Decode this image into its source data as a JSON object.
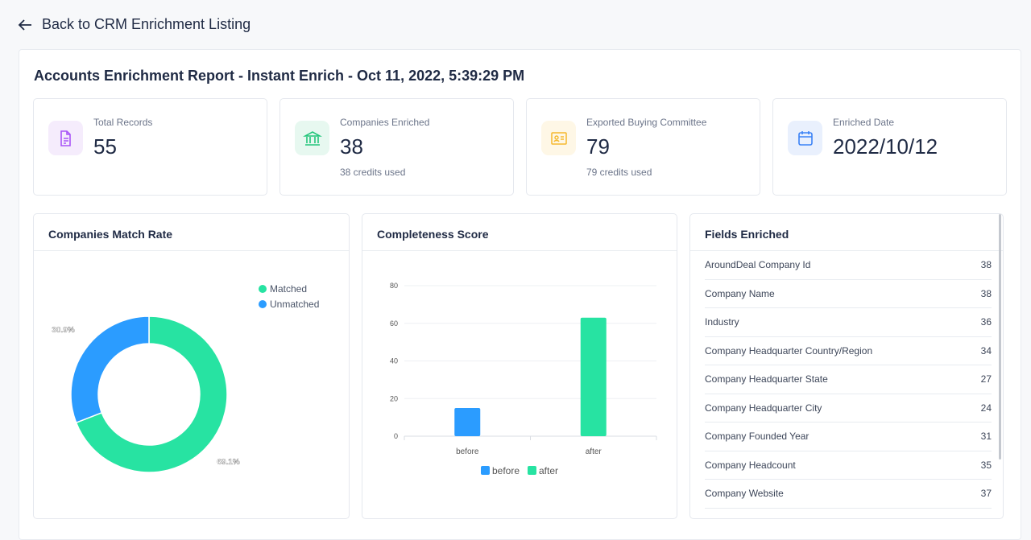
{
  "back_label": "Back to CRM Enrichment Listing",
  "report_title": "Accounts Enrichment Report - Instant Enrich - Oct 11, 2022, 5:39:29 PM",
  "stats": [
    {
      "label": "Total Records",
      "value": "55",
      "sub": "",
      "icon": "document-icon",
      "color": "#a855f7",
      "bg": "#f5ecfc"
    },
    {
      "label": "Companies Enriched",
      "value": "38",
      "sub": "38 credits used",
      "icon": "bank-icon",
      "color": "#22c57a",
      "bg": "#e7f8f0"
    },
    {
      "label": "Exported Buying Committee",
      "value": "79",
      "sub": "79 credits used",
      "icon": "id-card-icon",
      "color": "#f5b92e",
      "bg": "#fef7e6"
    },
    {
      "label": "Enriched Date",
      "value": "2022/10/12",
      "sub": "",
      "icon": "calendar-icon",
      "color": "#3b82f6",
      "bg": "#e9f0fd"
    }
  ],
  "match_panel": {
    "title": "Companies Match Rate"
  },
  "completeness_panel": {
    "title": "Completeness Score"
  },
  "fields_panel": {
    "title": "Fields Enriched",
    "rows": [
      {
        "name": "AroundDeal Company Id",
        "count": "38"
      },
      {
        "name": "Company Name",
        "count": "38"
      },
      {
        "name": "Industry",
        "count": "36"
      },
      {
        "name": "Company Headquarter Country/Region",
        "count": "34"
      },
      {
        "name": "Company Headquarter State",
        "count": "27"
      },
      {
        "name": "Company Headquarter City",
        "count": "24"
      },
      {
        "name": "Company Founded Year",
        "count": "31"
      },
      {
        "name": "Company Headcount",
        "count": "35"
      },
      {
        "name": "Company Website",
        "count": "37"
      }
    ]
  },
  "chart_data": [
    {
      "type": "pie",
      "donut": true,
      "categories": [
        "Matched",
        "Unmatched"
      ],
      "values": [
        69.1,
        30.9
      ],
      "labels": [
        "69.1%",
        "30.9%"
      ],
      "colors": [
        "#27e3a2",
        "#2b9cff"
      ],
      "legend": "top-right"
    },
    {
      "type": "bar",
      "categories": [
        "before",
        "after"
      ],
      "values": [
        15,
        63
      ],
      "colors": [
        "#2b9cff",
        "#27e3a2"
      ],
      "legend_entries": [
        "before",
        "after"
      ],
      "ylim": [
        0,
        80
      ],
      "yticks": [
        "0",
        "20",
        "40",
        "60",
        "80"
      ],
      "grid": true,
      "legend": "bottom"
    }
  ]
}
